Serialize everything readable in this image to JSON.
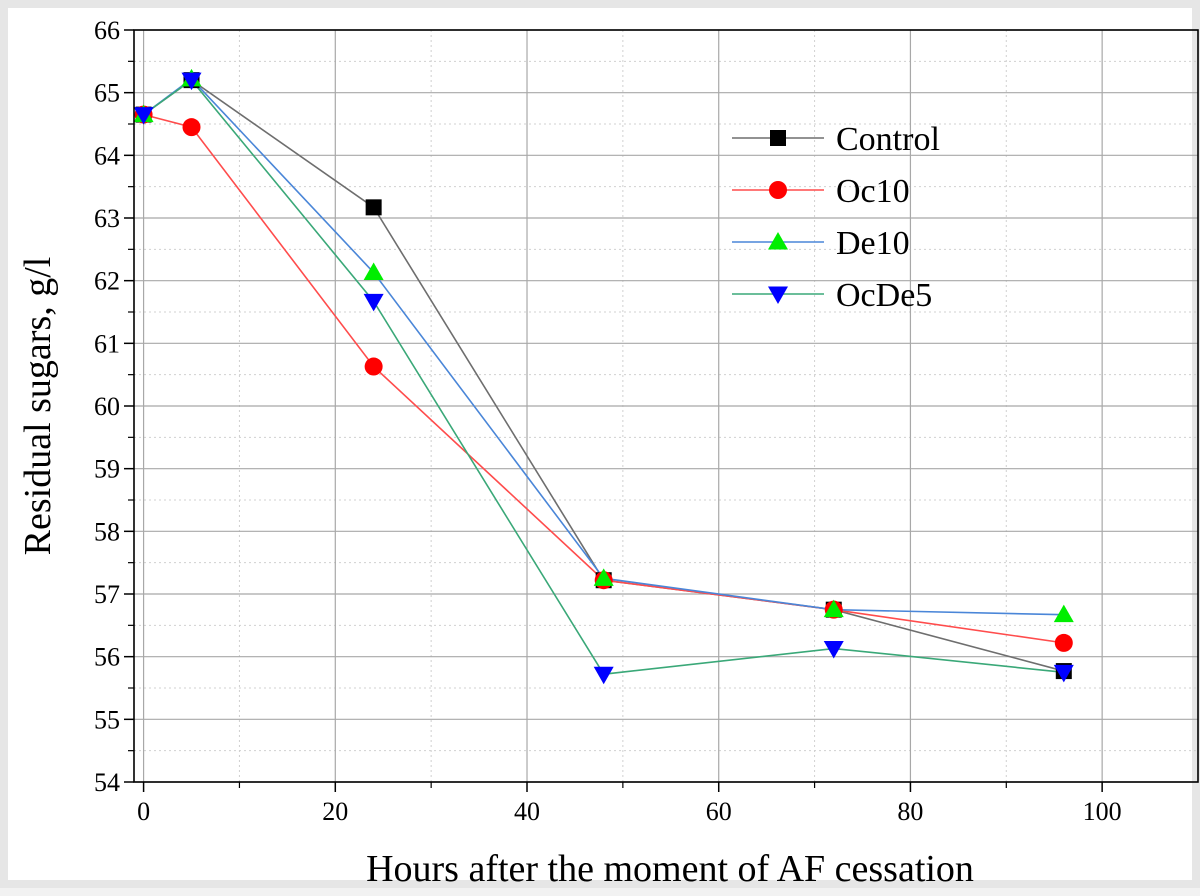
{
  "chart_data": {
    "type": "line",
    "title": "",
    "xlabel": "Hours after the moment of AF cessation",
    "ylabel": "Residual sugars, g/l",
    "xlim": [
      -1,
      110
    ],
    "ylim": [
      54,
      66
    ],
    "xticks": [
      0,
      20,
      40,
      60,
      80,
      100
    ],
    "yticks": [
      54,
      55,
      56,
      57,
      58,
      59,
      60,
      61,
      62,
      63,
      64,
      65,
      66
    ],
    "grid": true,
    "legend_position": "top-right",
    "x": [
      0,
      5,
      24,
      48,
      72,
      96
    ],
    "series": [
      {
        "name": "Control",
        "color": "#6e6e6e",
        "marker": "square",
        "marker_color": "#000000",
        "values": [
          64.65,
          65.2,
          63.17,
          57.22,
          56.75,
          55.77
        ]
      },
      {
        "name": "Oc10",
        "color": "#ff4c4c",
        "marker": "circle",
        "marker_color": "#ff0000",
        "values": [
          64.65,
          64.45,
          60.63,
          57.22,
          56.75,
          56.22
        ]
      },
      {
        "name": "De10",
        "color": "#4a86d8",
        "marker": "triangle-up",
        "marker_color": "#00ee00",
        "values": [
          64.65,
          65.22,
          62.13,
          57.25,
          56.75,
          56.67
        ]
      },
      {
        "name": "OcDe5",
        "color": "#3aa878",
        "marker": "triangle-down",
        "marker_color": "#0000ff",
        "values": [
          64.65,
          65.2,
          61.67,
          55.72,
          56.13,
          55.75
        ]
      }
    ]
  }
}
